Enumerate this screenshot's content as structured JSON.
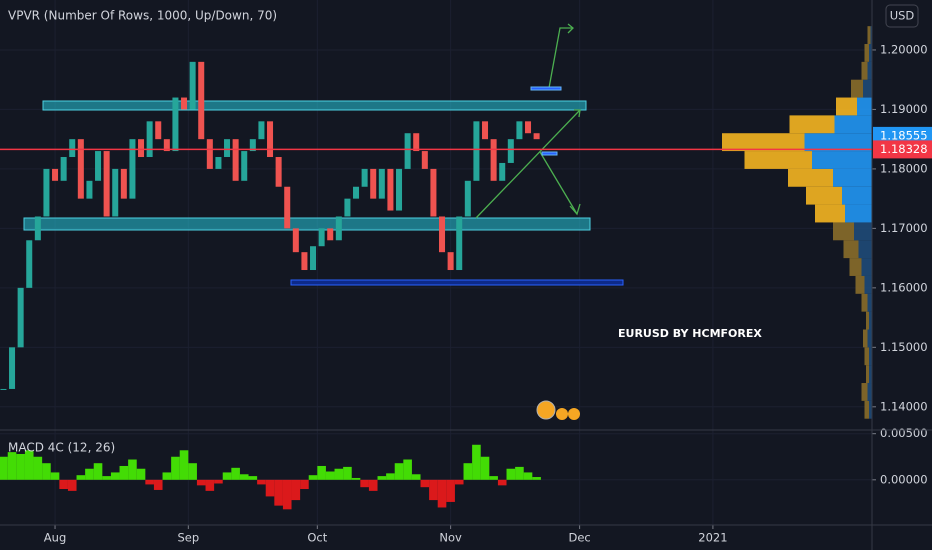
{
  "chart_data": [
    {
      "type": "candlestick",
      "title": "VPVR (Number Of Rows, 1000, Up/Down, 70)",
      "annotation": "EURUSD BY HCMFOREX",
      "currency": "USD",
      "up_color": "#26a69a",
      "down_color": "#ef5350",
      "x": [
        -12,
        -10,
        -8,
        -6,
        -4,
        -2,
        0,
        2,
        4,
        6,
        8,
        10,
        12,
        14,
        16,
        18,
        20,
        22,
        24,
        26,
        28,
        30,
        32,
        34,
        36,
        38,
        40,
        42,
        44,
        46,
        48,
        50,
        52,
        54,
        56,
        58,
        60,
        62,
        64,
        66,
        68,
        70,
        72,
        74,
        76,
        78,
        80,
        82,
        84,
        86,
        88,
        90,
        92,
        94,
        96,
        98,
        100,
        102,
        104,
        106,
        108,
        110,
        112
      ],
      "values": [
        1.143,
        1.15,
        1.16,
        1.168,
        1.172,
        1.18,
        1.178,
        1.182,
        1.185,
        1.175,
        1.178,
        1.183,
        1.172,
        1.18,
        1.175,
        1.185,
        1.182,
        1.188,
        1.185,
        1.183,
        1.192,
        1.19,
        1.198,
        1.185,
        1.18,
        1.182,
        1.185,
        1.178,
        1.183,
        1.185,
        1.188,
        1.182,
        1.177,
        1.17,
        1.166,
        1.163,
        1.167,
        1.17,
        1.168,
        1.172,
        1.175,
        1.177,
        1.18,
        1.175,
        1.18,
        1.173,
        1.18,
        1.186,
        1.183,
        1.18,
        1.172,
        1.166,
        1.163,
        1.172,
        1.178,
        1.188,
        1.185,
        1.178,
        1.181,
        1.185,
        1.188,
        1.186,
        1.185
      ],
      "xlim": [
        -12.8,
        190
      ],
      "xticks": [
        {
          "value": 0,
          "label": "Aug"
        },
        {
          "value": 31,
          "label": "Sep"
        },
        {
          "value": 61,
          "label": "Oct"
        },
        {
          "value": 92,
          "label": "Nov"
        },
        {
          "value": 122,
          "label": "Dec"
        },
        {
          "value": 153,
          "label": "2021"
        }
      ],
      "ylim": [
        1.1361,
        1.2084
      ],
      "yticks": [
        {
          "value": 1.14,
          "label": "1.14000"
        },
        {
          "value": 1.15,
          "label": "1.15000"
        },
        {
          "value": 1.16,
          "label": "1.16000"
        },
        {
          "value": 1.17,
          "label": "1.17000"
        },
        {
          "value": 1.18,
          "label": "1.18000"
        },
        {
          "value": 1.19,
          "label": "1.19000"
        },
        {
          "value": 1.2,
          "label": "1.20000"
        }
      ],
      "price_labels": [
        {
          "value": 1.18555,
          "label": "1.18555",
          "color": "#2196f3"
        },
        {
          "value": 1.18328,
          "label": "1.18328",
          "color": "#f23645"
        }
      ],
      "volume_profile": {
        "bins": [
          1.138,
          1.141,
          1.144,
          1.147,
          1.15,
          1.153,
          1.156,
          1.159,
          1.162,
          1.165,
          1.168,
          1.171,
          1.174,
          1.177,
          1.18,
          1.183,
          1.186,
          1.189,
          1.192,
          1.195,
          1.198,
          1.201,
          1.204
        ],
        "up": [
          3,
          4,
          2,
          3,
          3,
          2,
          4,
          6,
          8,
          10,
          14,
          20,
          24,
          30,
          45,
          55,
          30,
          14,
          8,
          4,
          3,
          2
        ],
        "down": [
          2,
          3,
          2,
          2,
          3,
          2,
          3,
          5,
          7,
          9,
          12,
          18,
          20,
          26,
          40,
          45,
          25,
          10,
          6,
          3,
          2,
          1
        ],
        "value_area": [
          1.171,
          1.192
        ],
        "up_color": "#f5b521",
        "down_color": "#2196f3",
        "up_color_outside": "#8a6d2a",
        "down_color_outside": "#1f4a78"
      }
    },
    {
      "type": "bar",
      "title": "MACD 4C (12, 26)",
      "positive_color": "#4cff00",
      "negative_color": "#ff1a1a",
      "x": [
        -12,
        -10,
        -8,
        -6,
        -4,
        -2,
        0,
        2,
        4,
        6,
        8,
        10,
        12,
        14,
        16,
        18,
        20,
        22,
        24,
        26,
        28,
        30,
        32,
        34,
        36,
        38,
        40,
        42,
        44,
        46,
        48,
        50,
        52,
        54,
        56,
        58,
        60,
        62,
        64,
        66,
        68,
        70,
        72,
        74,
        76,
        78,
        80,
        82,
        84,
        86,
        88,
        90,
        92,
        94,
        96,
        98,
        100,
        102,
        104,
        106,
        108,
        110,
        112
      ],
      "values": [
        0.0025,
        0.003,
        0.0028,
        0.0032,
        0.0025,
        0.0018,
        0.0008,
        -0.001,
        -0.0012,
        0.0005,
        0.0012,
        0.0018,
        0.0004,
        0.0008,
        0.0015,
        0.0022,
        0.0012,
        -0.0005,
        -0.0011,
        0.0008,
        0.0025,
        0.0032,
        0.0018,
        -0.0006,
        -0.0012,
        -0.0004,
        0.0008,
        0.0013,
        0.0006,
        0.0004,
        -0.0005,
        -0.0018,
        -0.0028,
        -0.0032,
        -0.0022,
        -0.001,
        0.0005,
        0.0015,
        0.0009,
        0.0012,
        0.0014,
        0.0002,
        -0.0008,
        -0.0012,
        0.0004,
        0.0007,
        0.0018,
        0.0022,
        0.0006,
        -0.0008,
        -0.0022,
        -0.003,
        -0.0024,
        -0.0005,
        0.0018,
        0.0038,
        0.0025,
        0.0004,
        -0.0006,
        0.0012,
        0.0014,
        0.0008,
        0.0003
      ],
      "xlim": [
        -12.8,
        190
      ],
      "ylim": [
        -0.0049,
        0.0054
      ],
      "yticks": [
        {
          "value": 0.005,
          "label": "0.00500"
        },
        {
          "value": 0,
          "label": "0.00000"
        }
      ]
    }
  ]
}
